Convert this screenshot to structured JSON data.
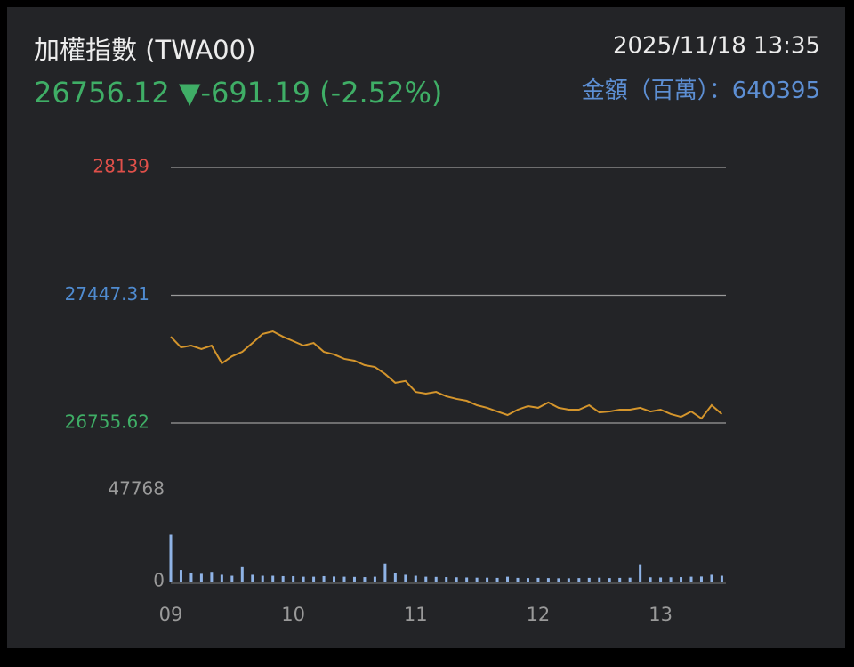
{
  "header": {
    "title": "加權指數 (TWA00)",
    "price": "26756.12",
    "change": "▼-691.19",
    "percent": "(-2.52%)",
    "datetime": "2025/11/18 13:35",
    "amount_label": "金額（百萬）：",
    "amount": "640395"
  },
  "chart_data": [
    {
      "type": "line",
      "color": "#d4952c",
      "x": [
        540,
        545,
        550,
        555,
        560,
        565,
        570,
        575,
        580,
        585,
        590,
        595,
        600,
        605,
        610,
        615,
        620,
        625,
        630,
        635,
        640,
        645,
        650,
        655,
        660,
        665,
        670,
        675,
        680,
        685,
        690,
        695,
        700,
        705,
        710,
        715,
        720,
        725,
        730,
        735,
        740,
        745,
        750,
        755,
        760,
        765,
        770,
        775,
        780,
        785,
        790,
        795,
        800,
        805,
        810
      ],
      "values": [
        27223,
        27165,
        27175,
        27156,
        27175,
        27079,
        27117,
        27141,
        27189,
        27238,
        27252,
        27223,
        27199,
        27175,
        27189,
        27141,
        27127,
        27103,
        27093,
        27069,
        27059,
        27021,
        26973,
        26983,
        26924,
        26915,
        26924,
        26900,
        26886,
        26876,
        26852,
        26838,
        26818,
        26799,
        26828,
        26847,
        26838,
        26867,
        26838,
        26828,
        26828,
        26852,
        26813,
        26818,
        26828,
        26828,
        26838,
        26818,
        26828,
        26804,
        26789,
        26818,
        26780,
        26852,
        26804
      ],
      "xlim": [
        540,
        812
      ],
      "ylim": [
        26755.62,
        28139
      ],
      "yticks": [
        26755.62,
        27447.31,
        28139
      ],
      "ytick_colors": [
        "#3fae66",
        "#4f8bd0",
        "#e0504a"
      ],
      "grid": true
    },
    {
      "type": "bar",
      "color": "#8fb3e6",
      "x": [
        540,
        545,
        550,
        555,
        560,
        565,
        570,
        575,
        580,
        585,
        590,
        595,
        600,
        605,
        610,
        615,
        620,
        625,
        630,
        635,
        640,
        645,
        650,
        655,
        660,
        665,
        670,
        675,
        680,
        685,
        690,
        695,
        700,
        705,
        710,
        715,
        720,
        725,
        730,
        735,
        740,
        745,
        750,
        755,
        760,
        765,
        770,
        775,
        780,
        785,
        790,
        795,
        800,
        805,
        810
      ],
      "values": [
        24350,
        6000,
        4500,
        4000,
        5000,
        3500,
        3000,
        7500,
        3500,
        3000,
        3000,
        2800,
        2800,
        2500,
        2500,
        2800,
        2600,
        2500,
        2400,
        2300,
        2500,
        9400,
        4500,
        3500,
        3000,
        2500,
        2400,
        2300,
        2200,
        2100,
        2000,
        2000,
        1900,
        2500,
        1900,
        1800,
        1900,
        1800,
        1700,
        1700,
        1800,
        1900,
        2000,
        1800,
        1900,
        2000,
        9000,
        2200,
        2100,
        2200,
        2300,
        2500,
        2600,
        3500,
        3000
      ],
      "xlim": [
        540,
        812
      ],
      "ylim": [
        0,
        47768
      ],
      "yticks": [
        0,
        47768
      ],
      "ytick_colors": [
        "#9a9a9a",
        "#9a9a9a"
      ],
      "xticks": [
        {
          "value": 540,
          "label": "09"
        },
        {
          "value": 600,
          "label": "10"
        },
        {
          "value": 660,
          "label": "11"
        },
        {
          "value": 720,
          "label": "12"
        },
        {
          "value": 780,
          "label": "13"
        }
      ]
    }
  ]
}
